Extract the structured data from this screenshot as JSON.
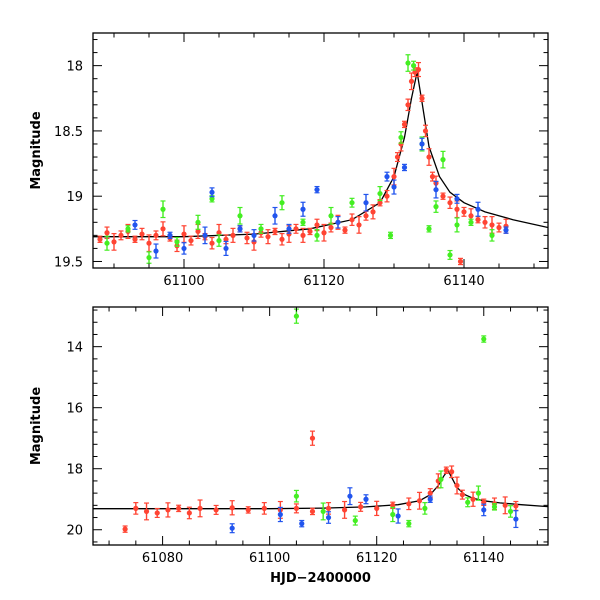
{
  "chart_data": [
    {
      "type": "scatter",
      "title": "",
      "xlabel": "",
      "ylabel": "Magnitude",
      "xlim": [
        61087,
        61152
      ],
      "ylim": [
        19.55,
        17.75
      ],
      "y_inverted": true,
      "xticks": [
        61100,
        61120,
        61140
      ],
      "yticks": [
        18,
        18.5,
        19,
        19.5
      ],
      "grid": false,
      "series": [
        {
          "color": "#ff4433",
          "points": [
            [
              61088.0,
              19.33
            ],
            [
              61089.0,
              19.28
            ],
            [
              61090.0,
              19.35
            ],
            [
              61091.0,
              19.3
            ],
            [
              61092.0,
              19.27
            ],
            [
              61093.0,
              19.33
            ],
            [
              61094.0,
              19.29
            ],
            [
              61095.0,
              19.36
            ],
            [
              61096.0,
              19.3
            ],
            [
              61097.0,
              19.25
            ],
            [
              61098.0,
              19.32
            ],
            [
              61099.0,
              19.38
            ],
            [
              61100.0,
              19.29
            ],
            [
              61101.0,
              19.34
            ],
            [
              61102.0,
              19.27
            ],
            [
              61103.0,
              19.31
            ],
            [
              61104.0,
              19.36
            ],
            [
              61105.0,
              19.28
            ],
            [
              61106.0,
              19.33
            ],
            [
              61107.0,
              19.3
            ],
            [
              61108.0,
              19.25
            ],
            [
              61109.0,
              19.32
            ],
            [
              61110.0,
              19.35
            ],
            [
              61111.0,
              19.28
            ],
            [
              61112.0,
              19.31
            ],
            [
              61113.0,
              19.27
            ],
            [
              61114.0,
              19.33
            ],
            [
              61115.0,
              19.29
            ],
            [
              61116.0,
              19.25
            ],
            [
              61117.0,
              19.3
            ],
            [
              61118.0,
              19.27
            ],
            [
              61119.0,
              19.22
            ],
            [
              61120.0,
              19.28
            ],
            [
              61121.0,
              19.24
            ],
            [
              61122.0,
              19.2
            ],
            [
              61123.0,
              19.26
            ],
            [
              61124.0,
              19.18
            ],
            [
              61125.0,
              19.22
            ],
            [
              61126.0,
              19.15
            ],
            [
              61127.0,
              19.12
            ],
            [
              61128.0,
              19.05
            ],
            [
              61129.0,
              19.0
            ],
            [
              61130.0,
              18.85
            ],
            [
              61130.5,
              18.7
            ],
            [
              61131.0,
              18.6
            ],
            [
              61131.5,
              18.45
            ],
            [
              61132.0,
              18.3
            ],
            [
              61132.5,
              18.12
            ],
            [
              61133.0,
              18.05
            ],
            [
              61133.5,
              18.03
            ],
            [
              61134.0,
              18.25
            ],
            [
              61134.5,
              18.5
            ],
            [
              61135.0,
              18.7
            ],
            [
              61135.5,
              18.85
            ],
            [
              61136.0,
              18.9
            ],
            [
              61137.0,
              19.0
            ],
            [
              61138.0,
              19.05
            ],
            [
              61139.0,
              19.1
            ],
            [
              61140.0,
              19.12
            ],
            [
              61141.0,
              19.15
            ],
            [
              61142.0,
              19.18
            ],
            [
              61143.0,
              19.2
            ],
            [
              61144.0,
              19.22
            ],
            [
              61145.0,
              19.24
            ],
            [
              61146.0,
              19.23
            ],
            [
              61139.5,
              19.5
            ]
          ]
        },
        {
          "color": "#44ee22",
          "points": [
            [
              61089.0,
              19.36
            ],
            [
              61092.0,
              19.25
            ],
            [
              61095.0,
              19.47
            ],
            [
              61097.0,
              19.1
            ],
            [
              61099.0,
              19.35
            ],
            [
              61102.0,
              19.2
            ],
            [
              61104.0,
              19.02
            ],
            [
              61105.0,
              19.34
            ],
            [
              61108.0,
              19.15
            ],
            [
              61111.0,
              19.25
            ],
            [
              61114.0,
              19.05
            ],
            [
              61117.0,
              19.2
            ],
            [
              61119.0,
              19.3
            ],
            [
              61121.0,
              19.15
            ],
            [
              61124.0,
              19.05
            ],
            [
              61128.0,
              18.98
            ],
            [
              61129.5,
              19.3
            ],
            [
              61131.0,
              18.55
            ],
            [
              61132.0,
              17.98
            ],
            [
              61132.8,
              18.0
            ],
            [
              61134.0,
              18.6
            ],
            [
              61135.0,
              19.25
            ],
            [
              61136.0,
              19.08
            ],
            [
              61137.0,
              18.72
            ],
            [
              61138.0,
              19.45
            ],
            [
              61139.0,
              19.22
            ],
            [
              61141.0,
              19.2
            ],
            [
              61144.0,
              19.3
            ]
          ]
        },
        {
          "color": "#2255ee",
          "points": [
            [
              61093.0,
              19.22
            ],
            [
              61096.0,
              19.42
            ],
            [
              61098.0,
              19.3
            ],
            [
              61100.0,
              19.4
            ],
            [
              61103.0,
              19.3
            ],
            [
              61104.0,
              18.97
            ],
            [
              61106.0,
              19.4
            ],
            [
              61108.0,
              19.25
            ],
            [
              61110.0,
              19.3
            ],
            [
              61113.0,
              19.15
            ],
            [
              61115.0,
              19.25
            ],
            [
              61117.0,
              19.1
            ],
            [
              61119.0,
              18.95
            ],
            [
              61122.0,
              19.2
            ],
            [
              61126.0,
              19.05
            ],
            [
              61129.0,
              18.85
            ],
            [
              61130.0,
              18.93
            ],
            [
              61131.5,
              18.78
            ],
            [
              61134.0,
              18.6
            ],
            [
              61136.0,
              18.95
            ],
            [
              61139.0,
              19.02
            ],
            [
              61142.0,
              19.1
            ],
            [
              61146.0,
              19.26
            ]
          ]
        }
      ],
      "model_curve": {
        "color": "#000000",
        "points": [
          [
            61087,
            19.31
          ],
          [
            61100,
            19.31
          ],
          [
            61110,
            19.29
          ],
          [
            61118,
            19.25
          ],
          [
            61124,
            19.18
          ],
          [
            61128,
            19.05
          ],
          [
            61130,
            18.85
          ],
          [
            61131.5,
            18.55
          ],
          [
            61132.5,
            18.25
          ],
          [
            61133.3,
            18.05
          ],
          [
            61134,
            18.28
          ],
          [
            61135,
            18.62
          ],
          [
            61136.5,
            18.85
          ],
          [
            61138,
            18.97
          ],
          [
            61140,
            19.05
          ],
          [
            61143,
            19.12
          ],
          [
            61147,
            19.18
          ],
          [
            61152,
            19.24
          ]
        ]
      }
    },
    {
      "type": "scatter",
      "title": "",
      "xlabel": "HJD−2400000",
      "ylabel": "Magnitude",
      "xlim": [
        61067,
        61152
      ],
      "ylim": [
        20.5,
        12.7
      ],
      "y_inverted": true,
      "xticks": [
        61080,
        61100,
        61120,
        61140
      ],
      "yticks": [
        14,
        16,
        18,
        20
      ],
      "grid": false,
      "series": [
        {
          "color": "#ff4433",
          "points": [
            [
              61073.0,
              19.98
            ],
            [
              61075.0,
              19.3
            ],
            [
              61077.0,
              19.4
            ],
            [
              61079.0,
              19.45
            ],
            [
              61081.0,
              19.35
            ],
            [
              61083.0,
              19.3
            ],
            [
              61085.0,
              19.45
            ],
            [
              61087.0,
              19.3
            ],
            [
              61090.0,
              19.35
            ],
            [
              61093.0,
              19.28
            ],
            [
              61096.0,
              19.35
            ],
            [
              61099.0,
              19.3
            ],
            [
              61102.0,
              19.35
            ],
            [
              61105.0,
              19.3
            ],
            [
              61108.0,
              17.0
            ],
            [
              61108.0,
              19.4
            ],
            [
              61111.0,
              19.3
            ],
            [
              61114.0,
              19.35
            ],
            [
              61117.0,
              19.25
            ],
            [
              61120.0,
              19.3
            ],
            [
              61123.0,
              19.2
            ],
            [
              61126.0,
              19.15
            ],
            [
              61128.0,
              19.05
            ],
            [
              61130.0,
              18.8
            ],
            [
              61131.5,
              18.4
            ],
            [
              61133.0,
              18.05
            ],
            [
              61134.0,
              18.1
            ],
            [
              61135.0,
              18.55
            ],
            [
              61136.0,
              18.85
            ],
            [
              61138.0,
              19.0
            ],
            [
              61140.0,
              19.1
            ],
            [
              61142.0,
              19.15
            ],
            [
              61144.0,
              19.2
            ],
            [
              61146.0,
              19.22
            ]
          ]
        },
        {
          "color": "#44ee22",
          "points": [
            [
              61105.0,
              13.0
            ],
            [
              61140.0,
              13.75
            ],
            [
              61105.0,
              18.9
            ],
            [
              61110.0,
              19.4
            ],
            [
              61116.0,
              19.7
            ],
            [
              61123.0,
              19.5
            ],
            [
              61126.0,
              19.8
            ],
            [
              61129.0,
              19.3
            ],
            [
              61132.0,
              18.35
            ],
            [
              61137.0,
              19.1
            ],
            [
              61139.0,
              18.8
            ],
            [
              61142.0,
              19.25
            ],
            [
              61145.0,
              19.4
            ]
          ]
        },
        {
          "color": "#2255ee",
          "points": [
            [
              61093.0,
              19.95
            ],
            [
              61102.0,
              19.5
            ],
            [
              61106.0,
              19.8
            ],
            [
              61111.0,
              19.6
            ],
            [
              61115.0,
              18.9
            ],
            [
              61118.0,
              19.0
            ],
            [
              61124.0,
              19.55
            ],
            [
              61130.0,
              19.0
            ],
            [
              61140.0,
              19.35
            ],
            [
              61146.0,
              19.65
            ]
          ]
        }
      ],
      "model_curve": {
        "color": "#000000",
        "points": [
          [
            61067,
            19.31
          ],
          [
            61100,
            19.31
          ],
          [
            61110,
            19.29
          ],
          [
            61118,
            19.25
          ],
          [
            61124,
            19.18
          ],
          [
            61128,
            19.05
          ],
          [
            61130,
            18.85
          ],
          [
            61131.5,
            18.55
          ],
          [
            61132.5,
            18.25
          ],
          [
            61133.3,
            18.05
          ],
          [
            61134,
            18.28
          ],
          [
            61135,
            18.62
          ],
          [
            61136.5,
            18.85
          ],
          [
            61138,
            18.97
          ],
          [
            61140,
            19.05
          ],
          [
            61143,
            19.12
          ],
          [
            61147,
            19.18
          ],
          [
            61152,
            19.24
          ]
        ]
      }
    }
  ]
}
